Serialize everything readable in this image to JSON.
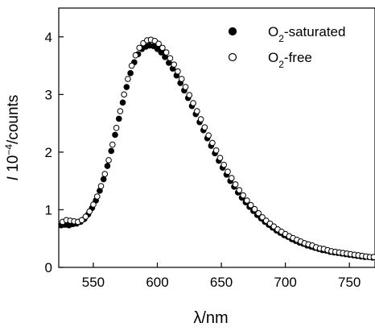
{
  "chart_data": {
    "type": "scatter",
    "title": "",
    "xlabel": "λ/nm",
    "ylabel": "I 10⁻⁴/counts",
    "xlim": [
      523,
      770
    ],
    "ylim": [
      0,
      4.5
    ],
    "x_ticks": [
      550,
      600,
      650,
      700,
      750
    ],
    "y_ticks": [
      0,
      1,
      2,
      3,
      4
    ],
    "grid": false,
    "legend_position": "top-right",
    "series": [
      {
        "name": "O₂-saturated",
        "marker": "filled-circle",
        "color": "#000000",
        "points": [
          [
            525,
            0.73
          ],
          [
            528,
            0.74
          ],
          [
            531,
            0.73
          ],
          [
            534,
            0.75
          ],
          [
            537,
            0.76
          ],
          [
            540,
            0.79
          ],
          [
            543,
            0.84
          ],
          [
            546,
            0.92
          ],
          [
            549,
            1.03
          ],
          [
            552,
            1.16
          ],
          [
            555,
            1.33
          ],
          [
            558,
            1.53
          ],
          [
            561,
            1.76
          ],
          [
            564,
            2.02
          ],
          [
            567,
            2.3
          ],
          [
            570,
            2.58
          ],
          [
            573,
            2.86
          ],
          [
            576,
            3.13
          ],
          [
            579,
            3.37
          ],
          [
            582,
            3.56
          ],
          [
            585,
            3.7
          ],
          [
            588,
            3.79
          ],
          [
            591,
            3.83
          ],
          [
            594,
            3.85
          ],
          [
            597,
            3.84
          ],
          [
            600,
            3.79
          ],
          [
            603,
            3.73
          ],
          [
            606,
            3.65
          ],
          [
            609,
            3.55
          ],
          [
            612,
            3.45
          ],
          [
            615,
            3.33
          ],
          [
            618,
            3.2
          ],
          [
            621,
            3.07
          ],
          [
            624,
            2.94
          ],
          [
            627,
            2.8
          ],
          [
            630,
            2.66
          ],
          [
            633,
            2.52
          ],
          [
            636,
            2.38
          ],
          [
            639,
            2.24
          ],
          [
            642,
            2.11
          ],
          [
            645,
            1.98
          ],
          [
            648,
            1.85
          ],
          [
            651,
            1.73
          ],
          [
            654,
            1.61
          ],
          [
            657,
            1.5
          ],
          [
            660,
            1.4
          ],
          [
            663,
            1.3
          ],
          [
            666,
            1.21
          ],
          [
            669,
            1.13
          ],
          [
            672,
            1.05
          ],
          [
            675,
            0.98
          ],
          [
            678,
            0.91
          ],
          [
            681,
            0.85
          ],
          [
            684,
            0.79
          ],
          [
            687,
            0.74
          ],
          [
            690,
            0.69
          ],
          [
            693,
            0.64
          ],
          [
            696,
            0.6
          ],
          [
            699,
            0.56
          ],
          [
            702,
            0.53
          ],
          [
            705,
            0.49
          ],
          [
            708,
            0.46
          ],
          [
            711,
            0.43
          ],
          [
            714,
            0.41
          ],
          [
            717,
            0.38
          ],
          [
            720,
            0.36
          ],
          [
            723,
            0.34
          ],
          [
            726,
            0.32
          ],
          [
            729,
            0.3
          ],
          [
            732,
            0.29
          ],
          [
            735,
            0.27
          ],
          [
            738,
            0.26
          ],
          [
            741,
            0.25
          ],
          [
            744,
            0.24
          ],
          [
            747,
            0.23
          ],
          [
            750,
            0.22
          ],
          [
            753,
            0.21
          ],
          [
            756,
            0.2
          ],
          [
            759,
            0.19
          ],
          [
            762,
            0.18
          ],
          [
            765,
            0.18
          ],
          [
            768,
            0.17
          ]
        ]
      },
      {
        "name": "O₂-free",
        "marker": "open-circle",
        "color": "#000000",
        "points": [
          [
            526,
            0.79
          ],
          [
            529,
            0.82
          ],
          [
            532,
            0.81
          ],
          [
            535,
            0.8
          ],
          [
            538,
            0.79
          ],
          [
            541,
            0.82
          ],
          [
            544,
            0.88
          ],
          [
            547,
            0.97
          ],
          [
            550,
            1.09
          ],
          [
            553,
            1.23
          ],
          [
            556,
            1.41
          ],
          [
            559,
            1.62
          ],
          [
            562,
            1.86
          ],
          [
            565,
            2.13
          ],
          [
            568,
            2.42
          ],
          [
            571,
            2.71
          ],
          [
            574,
            3.0
          ],
          [
            577,
            3.27
          ],
          [
            580,
            3.5
          ],
          [
            583,
            3.68
          ],
          [
            586,
            3.81
          ],
          [
            589,
            3.89
          ],
          [
            592,
            3.94
          ],
          [
            595,
            3.95
          ],
          [
            598,
            3.93
          ],
          [
            601,
            3.88
          ],
          [
            604,
            3.81
          ],
          [
            607,
            3.73
          ],
          [
            610,
            3.63
          ],
          [
            613,
            3.52
          ],
          [
            616,
            3.4
          ],
          [
            619,
            3.27
          ],
          [
            622,
            3.13
          ],
          [
            625,
            2.99
          ],
          [
            628,
            2.85
          ],
          [
            631,
            2.71
          ],
          [
            634,
            2.57
          ],
          [
            637,
            2.43
          ],
          [
            640,
            2.29
          ],
          [
            643,
            2.16
          ],
          [
            646,
            2.03
          ],
          [
            649,
            1.9
          ],
          [
            652,
            1.78
          ],
          [
            655,
            1.66
          ],
          [
            658,
            1.55
          ],
          [
            661,
            1.44
          ],
          [
            664,
            1.34
          ],
          [
            667,
            1.25
          ],
          [
            670,
            1.16
          ],
          [
            673,
            1.08
          ],
          [
            676,
            1.01
          ],
          [
            679,
            0.94
          ],
          [
            682,
            0.87
          ],
          [
            685,
            0.81
          ],
          [
            688,
            0.76
          ],
          [
            691,
            0.71
          ],
          [
            694,
            0.66
          ],
          [
            697,
            0.62
          ],
          [
            700,
            0.58
          ],
          [
            703,
            0.54
          ],
          [
            706,
            0.51
          ],
          [
            709,
            0.48
          ],
          [
            712,
            0.45
          ],
          [
            715,
            0.42
          ],
          [
            718,
            0.4
          ],
          [
            721,
            0.38
          ],
          [
            724,
            0.35
          ],
          [
            727,
            0.33
          ],
          [
            730,
            0.32
          ],
          [
            733,
            0.3
          ],
          [
            736,
            0.28
          ],
          [
            739,
            0.27
          ],
          [
            742,
            0.26
          ],
          [
            745,
            0.25
          ],
          [
            748,
            0.24
          ],
          [
            751,
            0.23
          ],
          [
            754,
            0.22
          ],
          [
            757,
            0.21
          ],
          [
            760,
            0.2
          ],
          [
            763,
            0.19
          ],
          [
            766,
            0.18
          ],
          [
            769,
            0.18
          ]
        ]
      }
    ]
  }
}
